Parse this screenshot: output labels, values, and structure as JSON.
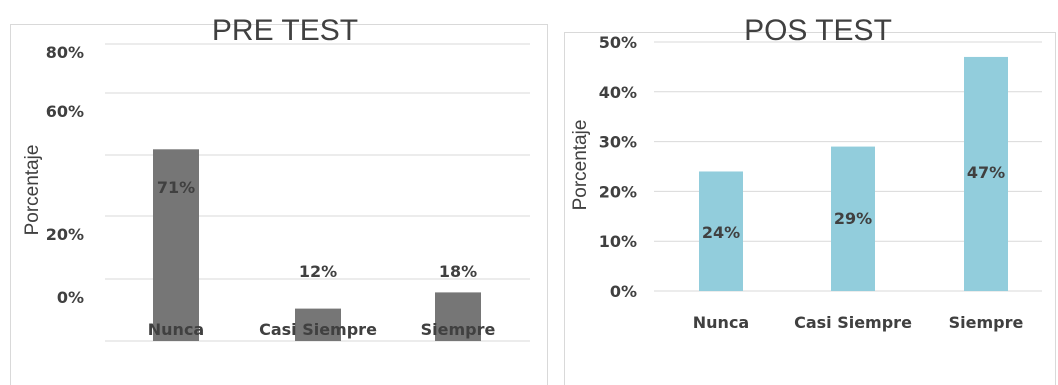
{
  "chart_data": [
    {
      "type": "bar",
      "title": "PRE TEST",
      "ylabel": "Porcentaje",
      "xlabel": "",
      "categories": [
        "Nunca",
        "Casi Siempre",
        "Siempre"
      ],
      "values": [
        71,
        12,
        18
      ],
      "data_labels": [
        "71%",
        "12%",
        "18%"
      ],
      "y_tick_labels": [
        "0%",
        "20%",
        "60%",
        "80%"
      ],
      "grid": true,
      "bar_color": "#767676"
    },
    {
      "type": "bar",
      "title": "POS TEST",
      "ylabel": "Porcentaje",
      "xlabel": "",
      "categories": [
        "Nunca",
        "Casi Siempre",
        "Siempre"
      ],
      "values": [
        24,
        29,
        47
      ],
      "data_labels": [
        "24%",
        "29%",
        "47%"
      ],
      "y_tick_labels": [
        "0%",
        "10%",
        "20%",
        "30%",
        "40%",
        "50%"
      ],
      "ylim": [
        0,
        50
      ],
      "grid": true,
      "bar_color": "#92cddc"
    }
  ]
}
